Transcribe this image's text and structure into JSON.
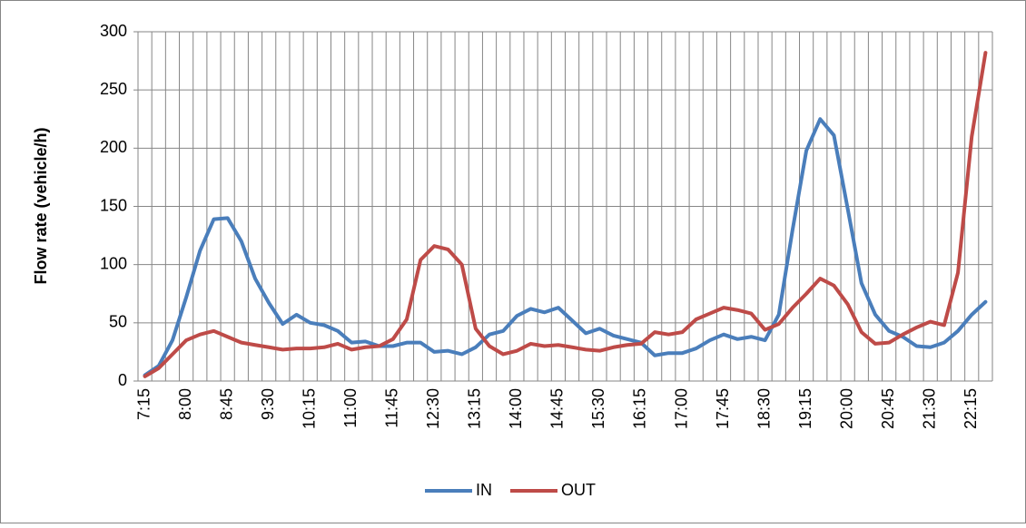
{
  "chart_data": {
    "type": "line",
    "y_label": "Flow rate (vehicle/h)",
    "categories": [
      "7:15",
      null,
      null,
      "8:00",
      null,
      null,
      "8:45",
      null,
      null,
      "9:30",
      null,
      null,
      "10:15",
      null,
      null,
      "11:00",
      null,
      null,
      "11:45",
      null,
      null,
      "12:30",
      null,
      null,
      "13:15",
      null,
      null,
      "14:00",
      null,
      null,
      "14:45",
      null,
      null,
      "15:30",
      null,
      null,
      "16:15",
      null,
      null,
      "17:00",
      null,
      null,
      "17:45",
      null,
      null,
      "18:30",
      null,
      null,
      "19:15",
      null,
      null,
      "20:00",
      null,
      null,
      "20:45",
      null,
      null,
      "21:30",
      null,
      null,
      "22:15",
      null
    ],
    "series": [
      {
        "name": "IN",
        "color": "#4a7ebb",
        "values": [
          5,
          13,
          35,
          72,
          112,
          139,
          140,
          120,
          88,
          67,
          49,
          57,
          50,
          48,
          43,
          33,
          34,
          30,
          30,
          33,
          33,
          25,
          26,
          23,
          29,
          40,
          43,
          56,
          62,
          59,
          63,
          52,
          41,
          45,
          39,
          36,
          33,
          22,
          24,
          24,
          28,
          35,
          40,
          36,
          38,
          35,
          57,
          130,
          198,
          225,
          211,
          148,
          84,
          57,
          43,
          38,
          30,
          29,
          33,
          43,
          57,
          68
        ]
      },
      {
        "name": "OUT",
        "color": "#be4b48",
        "values": [
          4,
          11,
          23,
          35,
          40,
          43,
          38,
          33,
          31,
          29,
          27,
          28,
          28,
          29,
          32,
          27,
          29,
          30,
          36,
          53,
          104,
          116,
          113,
          100,
          45,
          30,
          23,
          26,
          32,
          30,
          31,
          29,
          27,
          26,
          29,
          31,
          32,
          42,
          40,
          42,
          53,
          58,
          63,
          61,
          58,
          44,
          49,
          63,
          75,
          88,
          82,
          66,
          42,
          32,
          33,
          40,
          46,
          51,
          48,
          93,
          210,
          282
        ]
      }
    ],
    "ylim": [
      0,
      300
    ],
    "yticks": [
      0,
      50,
      100,
      150,
      200,
      250,
      300
    ],
    "grid": true,
    "legend": "bottom"
  }
}
